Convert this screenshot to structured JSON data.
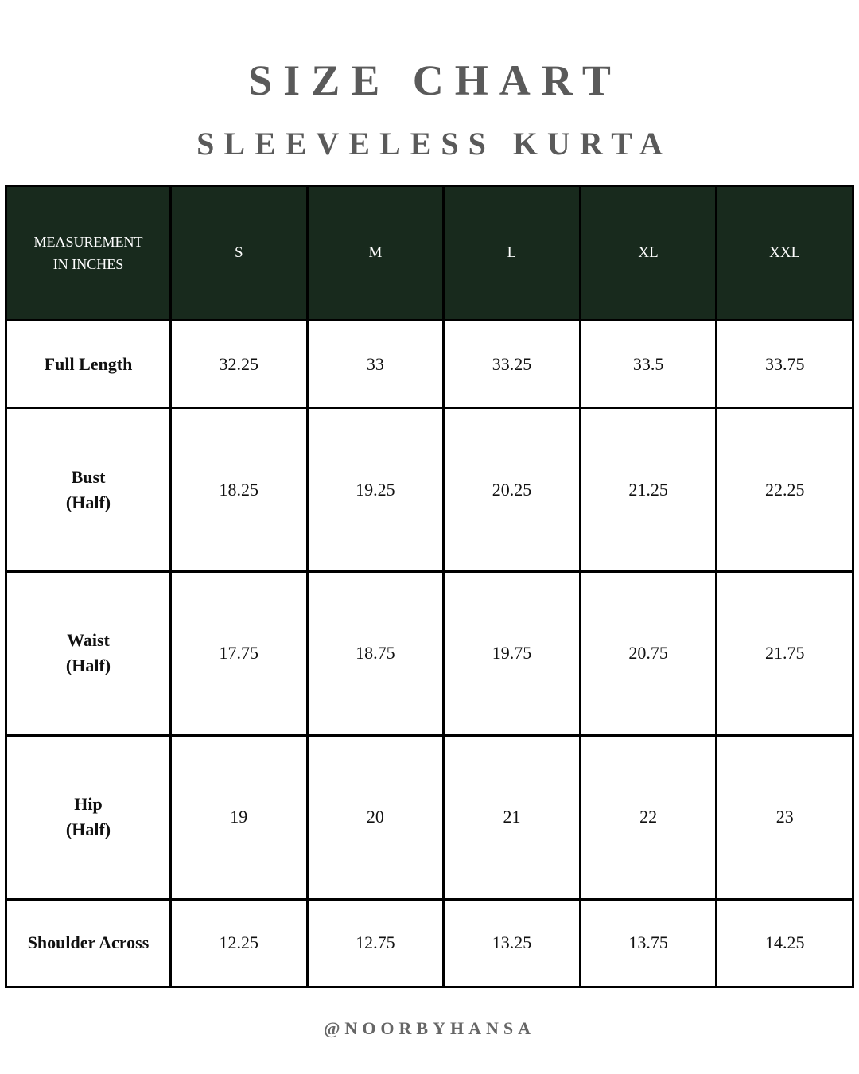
{
  "title": "SIZE CHART",
  "subtitle": "SLEEVELESS KURTA",
  "colors": {
    "header_bg": "#182a1d",
    "title": "#5a5a5a"
  },
  "table": {
    "corner_label": [
      "MEASUREMENT",
      "IN INCHES"
    ],
    "sizes": [
      "S",
      "M",
      "L",
      "XL",
      "XXL"
    ],
    "rows": [
      {
        "label": [
          "Full Length"
        ],
        "values": [
          "32.25",
          "33",
          "33.25",
          "33.5",
          "33.75"
        ]
      },
      {
        "label": [
          "Bust",
          "(Half)"
        ],
        "values": [
          "18.25",
          "19.25",
          "20.25",
          "21.25",
          "22.25"
        ]
      },
      {
        "label": [
          "Waist",
          "(Half)"
        ],
        "values": [
          "17.75",
          "18.75",
          "19.75",
          "20.75",
          "21.75"
        ]
      },
      {
        "label": [
          "Hip",
          "(Half)"
        ],
        "values": [
          "19",
          "20",
          "21",
          "22",
          "23"
        ]
      },
      {
        "label": [
          "Shoulder Across"
        ],
        "values": [
          "12.25",
          "12.75",
          "13.25",
          "13.75",
          "14.25"
        ]
      }
    ]
  },
  "footer": "@NOORBYHANSA"
}
